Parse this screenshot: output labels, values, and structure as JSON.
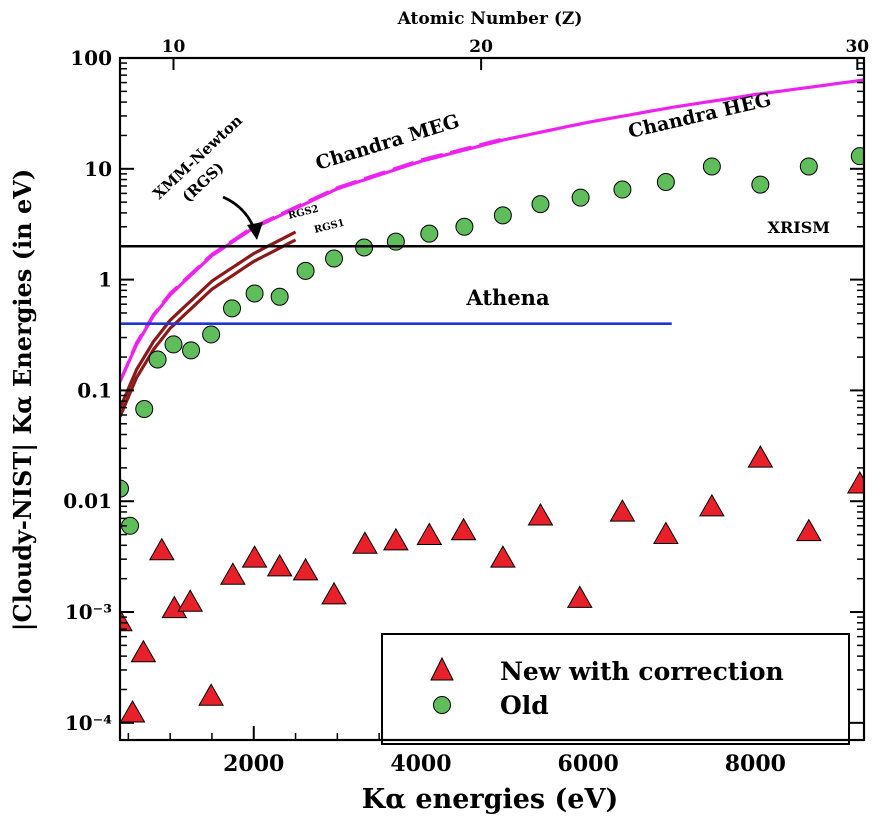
{
  "chart_data": {
    "type": "scatter",
    "xlabel": "Kα energies (eV)",
    "ylabel": "|Cloudy-NIST| Kα Energies (in eV)",
    "top_axis_label": "Atomic Number (Z)",
    "xlim": [
      400,
      9300
    ],
    "ylim": [
      7e-05,
      100
    ],
    "yscale": "log",
    "x_ticks": [
      2000,
      4000,
      6000,
      8000
    ],
    "x_tick_labels": [
      "2000",
      "4000",
      "6000",
      "8000"
    ],
    "y_ticks": [
      0.0001,
      0.001,
      0.01,
      0.1,
      1,
      10,
      100
    ],
    "y_tick_labels": [
      "10⁻⁴",
      "10⁻³",
      "0.01",
      "0.1",
      "1",
      "10",
      "100"
    ],
    "top_ticks": [
      {
        "label": "10",
        "x": 1040
      },
      {
        "label": "20",
        "x": 4720
      },
      {
        "label": "30",
        "x": 9220
      }
    ],
    "grid": false,
    "legend_position": "bottom-right",
    "series": [
      {
        "name": "New with correction",
        "marker": "triangle",
        "color": "#e8202a",
        "x": [
          400,
          550,
          680,
          900,
          1050,
          1240,
          1490,
          1750,
          2010,
          2310,
          2620,
          2960,
          3330,
          3700,
          4100,
          4510,
          4980,
          5430,
          5900,
          6410,
          6930,
          7480,
          8060,
          8640,
          9250
        ],
        "y": [
          0.0008,
          0.00012,
          0.00042,
          0.0035,
          0.00105,
          0.0012,
          0.00017,
          0.0021,
          0.003,
          0.0025,
          0.0023,
          0.0014,
          0.004,
          0.0043,
          0.0048,
          0.0053,
          0.003,
          0.0072,
          0.0013,
          0.0078,
          0.0049,
          0.0087,
          0.024,
          0.0052,
          0.014
        ]
      },
      {
        "name": "Old",
        "marker": "circle",
        "color": "#5fbd5b",
        "x": [
          400,
          520,
          690,
          850,
          1040,
          1250,
          1490,
          1740,
          2010,
          2310,
          2620,
          2960,
          3320,
          3700,
          4100,
          4520,
          4980,
          5430,
          5910,
          6410,
          6930,
          7480,
          8060,
          8640,
          9250
        ],
        "y": [
          0.013,
          0.006,
          0.068,
          0.19,
          0.26,
          0.23,
          0.32,
          0.55,
          0.75,
          0.7,
          1.2,
          1.55,
          1.95,
          2.2,
          2.6,
          3.0,
          3.8,
          4.8,
          5.5,
          6.5,
          7.6,
          10.5,
          7.2,
          10.5,
          13.0
        ]
      }
    ],
    "reference_lines": [
      {
        "name": "XRISM",
        "label": "XRISM",
        "y": 2.0,
        "x_range": [
          400,
          9300
        ],
        "color": "#000000"
      },
      {
        "name": "Athena",
        "label": "Athena",
        "y": 0.4,
        "x_range": [
          400,
          7000
        ],
        "color": "#1f33d6"
      }
    ],
    "curves": [
      {
        "name": "Chandra HEG",
        "label": "Chandra HEG",
        "color": "#ee22ee",
        "style": "solid",
        "x": [
          400,
          600,
          800,
          1000,
          1500,
          2000,
          3000,
          4000,
          5000,
          6000,
          7000,
          8000,
          9300
        ],
        "y": [
          0.12,
          0.26,
          0.47,
          0.73,
          1.65,
          2.93,
          6.6,
          11.7,
          18.3,
          26.3,
          35.8,
          46.8,
          63.3
        ]
      },
      {
        "name": "Chandra MEG",
        "label": "Chandra MEG",
        "color": "#ee22ee",
        "style": "dashed",
        "x": [
          400,
          600,
          800,
          1000,
          1500,
          2000,
          3000,
          4000,
          5000
        ],
        "y": [
          0.12,
          0.27,
          0.48,
          0.75,
          1.69,
          3.0,
          6.75,
          12.0,
          18.75
        ]
      },
      {
        "name": "RGS2",
        "label": "RGS2",
        "color": "#8b1a1a",
        "style": "solid",
        "x": [
          400,
          600,
          800,
          1000,
          1500,
          2000,
          2500
        ],
        "y": [
          0.069,
          0.155,
          0.275,
          0.43,
          0.97,
          1.72,
          2.69
        ]
      },
      {
        "name": "RGS1",
        "label": "RGS1",
        "color": "#8b1a1a",
        "style": "solid",
        "x": [
          400,
          600,
          800,
          1000,
          1500,
          2000,
          2500
        ],
        "y": [
          0.058,
          0.131,
          0.233,
          0.364,
          0.82,
          1.46,
          2.28
        ]
      }
    ],
    "annotations": [
      {
        "text": "XMM-Newton",
        "color": "#8b1a1a"
      },
      {
        "text": "(RGS)",
        "color": "#8b1a1a"
      }
    ]
  }
}
